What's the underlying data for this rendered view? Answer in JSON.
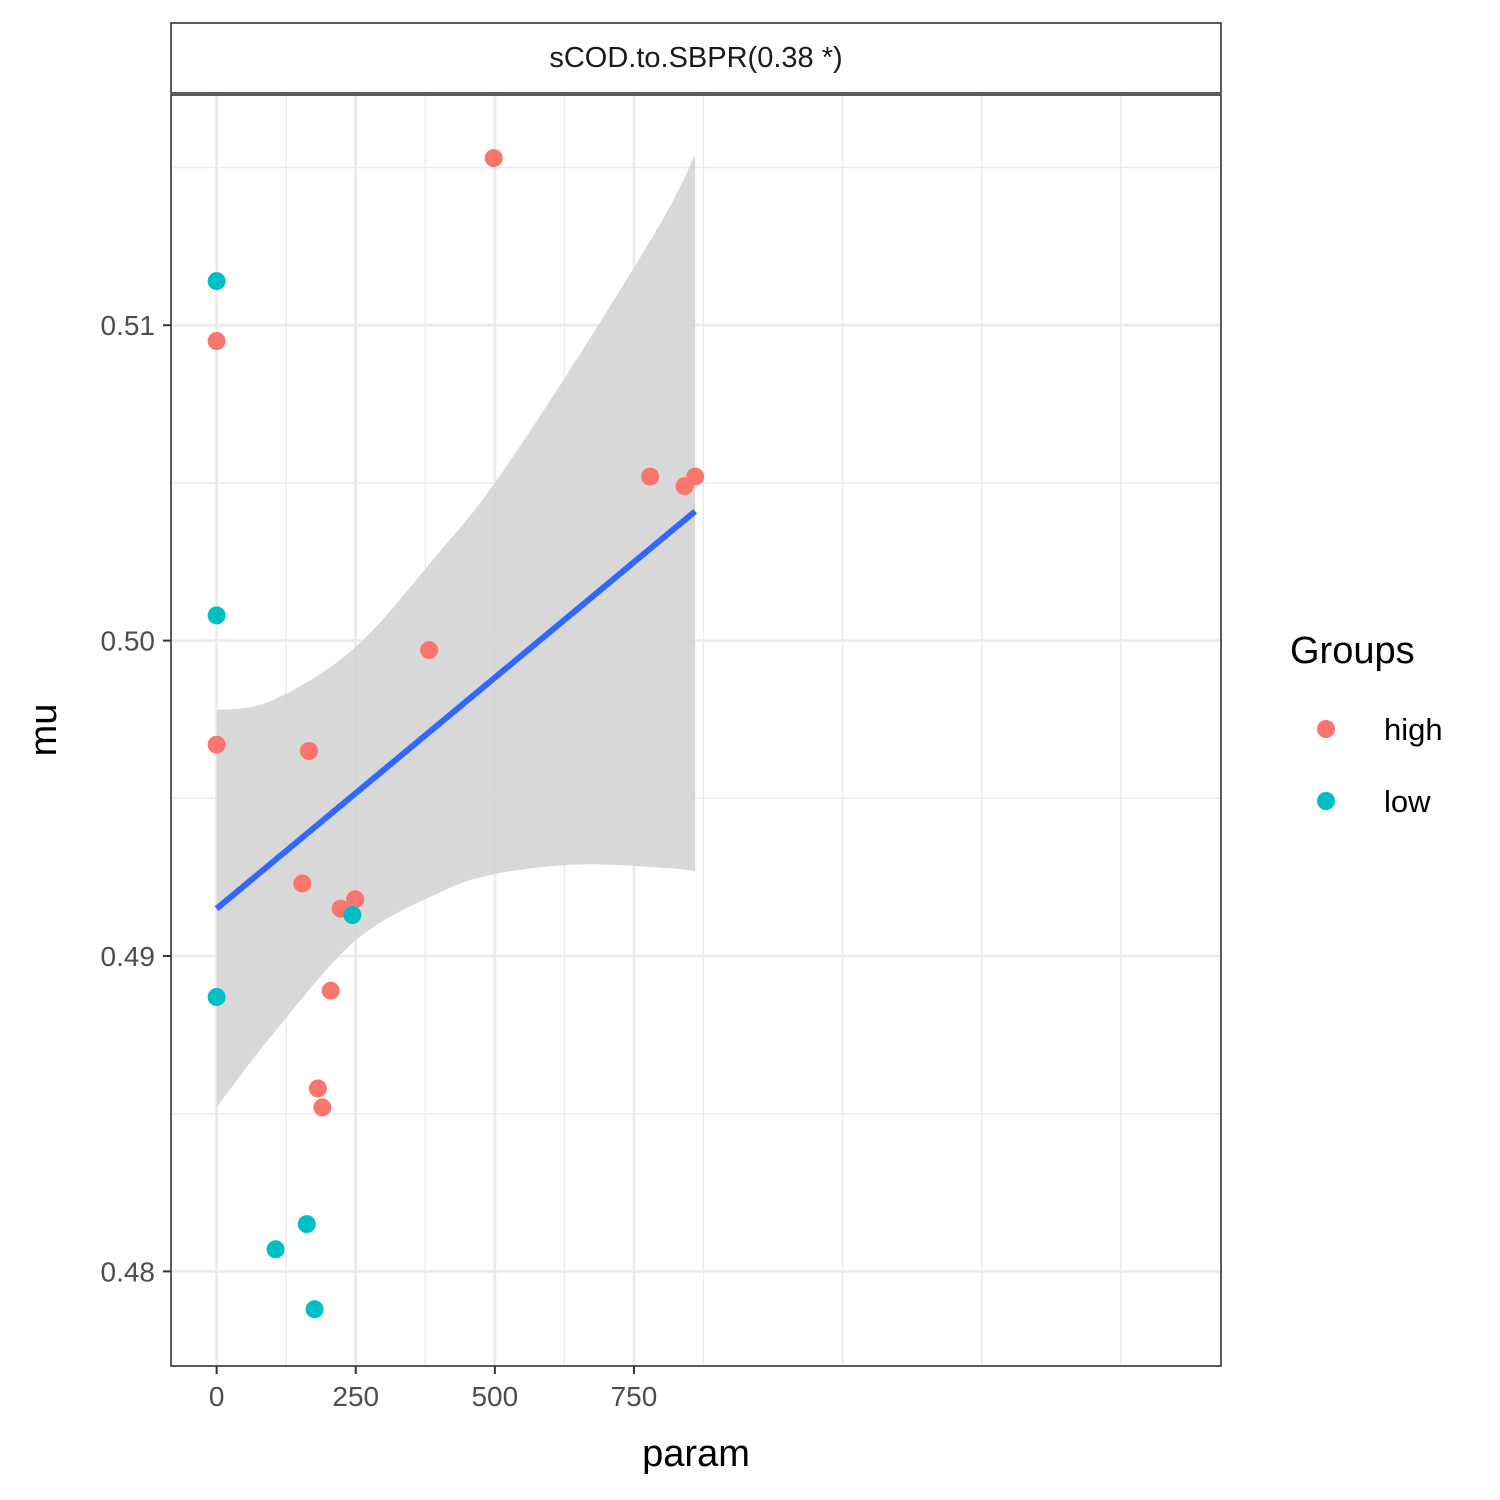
{
  "chart_data": {
    "type": "scatter",
    "panel_title": "sCOD.to.SBPR(0.38 *)",
    "xlabel": "param",
    "ylabel": "mu",
    "xlim": [
      -82,
      1805
    ],
    "ylim": [
      0.477,
      0.5173
    ],
    "x_ticks": [
      0,
      250,
      500,
      750
    ],
    "x_tick_labels": [
      "0",
      "250",
      "500",
      "750"
    ],
    "y_ticks": [
      0.48,
      0.49,
      0.5,
      0.51
    ],
    "y_tick_labels": [
      "0.48",
      "0.49",
      "0.50",
      "0.51"
    ],
    "grid": true,
    "legend": {
      "title": "Groups",
      "position": "right",
      "entries": [
        {
          "label": "high",
          "color": "#F8766D"
        },
        {
          "label": "low",
          "color": "#00BFC4"
        }
      ]
    },
    "series": [
      {
        "name": "high",
        "color": "#F8766D",
        "points": [
          {
            "x": 0,
            "y": 0.5095
          },
          {
            "x": 0,
            "y": 0.4967
          },
          {
            "x": 166,
            "y": 0.4965
          },
          {
            "x": 154,
            "y": 0.4923
          },
          {
            "x": 223,
            "y": 0.4915
          },
          {
            "x": 249,
            "y": 0.4918
          },
          {
            "x": 205,
            "y": 0.4889
          },
          {
            "x": 182,
            "y": 0.4858
          },
          {
            "x": 190,
            "y": 0.4852
          },
          {
            "x": 382,
            "y": 0.4997
          },
          {
            "x": 498,
            "y": 0.5153
          },
          {
            "x": 779,
            "y": 0.5052
          },
          {
            "x": 841,
            "y": 0.5049
          },
          {
            "x": 860,
            "y": 0.5052
          }
        ]
      },
      {
        "name": "low",
        "color": "#00BFC4",
        "points": [
          {
            "x": 0,
            "y": 0.5114
          },
          {
            "x": 0,
            "y": 0.5008
          },
          {
            "x": 0,
            "y": 0.4887
          },
          {
            "x": 244,
            "y": 0.4913
          },
          {
            "x": 106,
            "y": 0.4807
          },
          {
            "x": 162,
            "y": 0.4815
          },
          {
            "x": 176,
            "y": 0.4788
          }
        ]
      }
    ],
    "fit_line": {
      "color": "#3366FF",
      "x": [
        0,
        860
      ],
      "y": [
        0.4915,
        0.5041
      ]
    },
    "confidence_band": {
      "color": "#d4d4d4",
      "x": [
        0,
        100,
        250,
        400,
        500,
        650,
        800,
        860
      ],
      "upper": [
        0.4978,
        0.4981,
        0.4998,
        0.5028,
        0.505,
        0.509,
        0.5133,
        0.5154
      ],
      "lower": [
        0.4852,
        0.4875,
        0.4905,
        0.492,
        0.4926,
        0.4929,
        0.4928,
        0.4927
      ]
    }
  }
}
